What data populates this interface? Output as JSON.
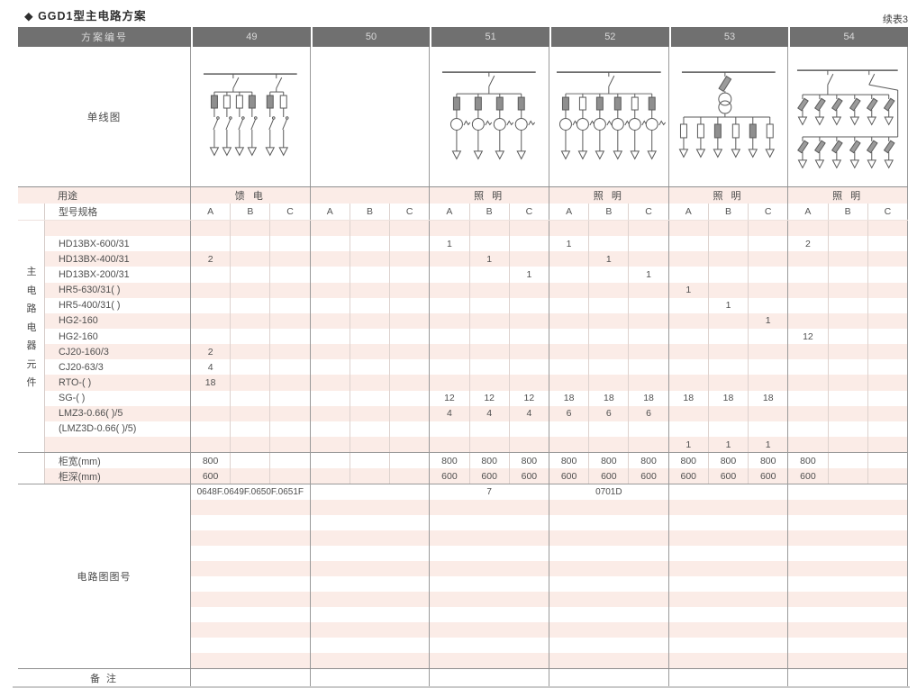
{
  "page": {
    "title": "◆ GGD1型主电路方案",
    "continuation": "续表3"
  },
  "colors": {
    "stripe": "#fbece7",
    "header_bg": "#707070",
    "header_text": "#d9d9d9",
    "grid_line": "#9a9a9a",
    "diagram_stroke": "#5a5a5a"
  },
  "table": {
    "header": {
      "label": "方案编号",
      "schemes": [
        "49",
        "50",
        "51",
        "52",
        "53",
        "54"
      ]
    },
    "diagram_row_label": "单线图",
    "usage": {
      "label": "用途",
      "values": [
        "馈 电",
        "",
        "照 明",
        "照 明",
        "照 明",
        "照 明"
      ]
    },
    "spec": {
      "label": "型号规格",
      "phases": [
        "A",
        "B",
        "C"
      ]
    },
    "section_label": "主电路电器元件",
    "components": [
      {
        "name": "",
        "values": [
          "",
          "",
          "",
          "",
          "",
          "",
          "",
          "",
          "",
          "",
          "",
          "",
          "",
          "",
          "",
          "",
          "",
          ""
        ]
      },
      {
        "name": "HD13BX-600/31",
        "values": [
          "",
          "",
          "",
          "",
          "",
          "",
          "1",
          "",
          "",
          "1",
          "",
          "",
          "",
          "",
          "",
          "2",
          "",
          ""
        ]
      },
      {
        "name": "HD13BX-400/31",
        "values": [
          "2",
          "",
          "",
          "",
          "",
          "",
          "",
          "1",
          "",
          "",
          "1",
          "",
          "",
          "",
          "",
          "",
          "",
          ""
        ]
      },
      {
        "name": "HD13BX-200/31",
        "values": [
          "",
          "",
          "",
          "",
          "",
          "",
          "",
          "",
          "1",
          "",
          "",
          "1",
          "",
          "",
          "",
          "",
          "",
          ""
        ]
      },
      {
        "name": "HR5-630/31( )",
        "values": [
          "",
          "",
          "",
          "",
          "",
          "",
          "",
          "",
          "",
          "",
          "",
          "",
          "1",
          "",
          "",
          "",
          "",
          ""
        ]
      },
      {
        "name": "HR5-400/31( )",
        "values": [
          "",
          "",
          "",
          "",
          "",
          "",
          "",
          "",
          "",
          "",
          "",
          "",
          "",
          "1",
          "",
          "",
          "",
          ""
        ]
      },
      {
        "name": "HG2-160",
        "values": [
          "",
          "",
          "",
          "",
          "",
          "",
          "",
          "",
          "",
          "",
          "",
          "",
          "",
          "",
          "1",
          "",
          "",
          ""
        ]
      },
      {
        "name": "HG2-160",
        "values": [
          "",
          "",
          "",
          "",
          "",
          "",
          "",
          "",
          "",
          "",
          "",
          "",
          "",
          "",
          "",
          "12",
          "",
          ""
        ]
      },
      {
        "name": "CJ20-160/3",
        "values": [
          "2",
          "",
          "",
          "",
          "",
          "",
          "",
          "",
          "",
          "",
          "",
          "",
          "",
          "",
          "",
          "",
          "",
          ""
        ]
      },
      {
        "name": "CJ20-63/3",
        "values": [
          "4",
          "",
          "",
          "",
          "",
          "",
          "",
          "",
          "",
          "",
          "",
          "",
          "",
          "",
          "",
          "",
          "",
          ""
        ]
      },
      {
        "name": "RTO-( )",
        "values": [
          "18",
          "",
          "",
          "",
          "",
          "",
          "",
          "",
          "",
          "",
          "",
          "",
          "",
          "",
          "",
          "",
          "",
          ""
        ]
      },
      {
        "name": "SG-( )",
        "values": [
          "",
          "",
          "",
          "",
          "",
          "",
          "12",
          "12",
          "12",
          "18",
          "18",
          "18",
          "18",
          "18",
          "18",
          "",
          "",
          ""
        ]
      },
      {
        "name": "LMZ3-0.66( )/5",
        "values": [
          "",
          "",
          "",
          "",
          "",
          "",
          "4",
          "4",
          "4",
          "6",
          "6",
          "6",
          "",
          "",
          "",
          "",
          "",
          ""
        ]
      },
      {
        "name": "(LMZ3D-0.66( )/5)",
        "values": [
          "",
          "",
          "",
          "",
          "",
          "",
          "",
          "",
          "",
          "",
          "",
          "",
          "",
          "",
          "",
          "",
          "",
          ""
        ]
      },
      {
        "name": "",
        "values": [
          "",
          "",
          "",
          "",
          "",
          "",
          "",
          "",
          "",
          "",
          "",
          "",
          "1",
          "1",
          "1",
          "",
          "",
          ""
        ]
      }
    ],
    "width_row": {
      "label": "柜宽(mm)",
      "values": [
        "800",
        "",
        "",
        "",
        "",
        "",
        "800",
        "800",
        "800",
        "800",
        "800",
        "800",
        "800",
        "800",
        "800",
        "800",
        "",
        ""
      ]
    },
    "depth_row": {
      "label": "柜深(mm)",
      "values": [
        "600",
        "",
        "",
        "",
        "",
        "",
        "600",
        "600",
        "600",
        "600",
        "600",
        "600",
        "600",
        "600",
        "600",
        "600",
        "",
        ""
      ]
    },
    "figure_section": {
      "label": "电路图图号",
      "values": [
        "0648F.0649F.0650F.0651F",
        "",
        "7",
        "0701D",
        "",
        ""
      ],
      "empty_rows": 11
    },
    "remarks": {
      "label": "备 注"
    }
  },
  "diagrams": [
    {
      "scheme": "49",
      "kind": "knife",
      "groups": [
        4,
        2
      ]
    },
    {
      "scheme": "50",
      "kind": "empty"
    },
    {
      "scheme": "51",
      "kind": "meter",
      "drops": 4
    },
    {
      "scheme": "52",
      "kind": "meter",
      "drops": 6
    },
    {
      "scheme": "53",
      "kind": "transformer",
      "drops": 6
    },
    {
      "scheme": "54",
      "kind": "two_tier",
      "drops": 6
    }
  ]
}
